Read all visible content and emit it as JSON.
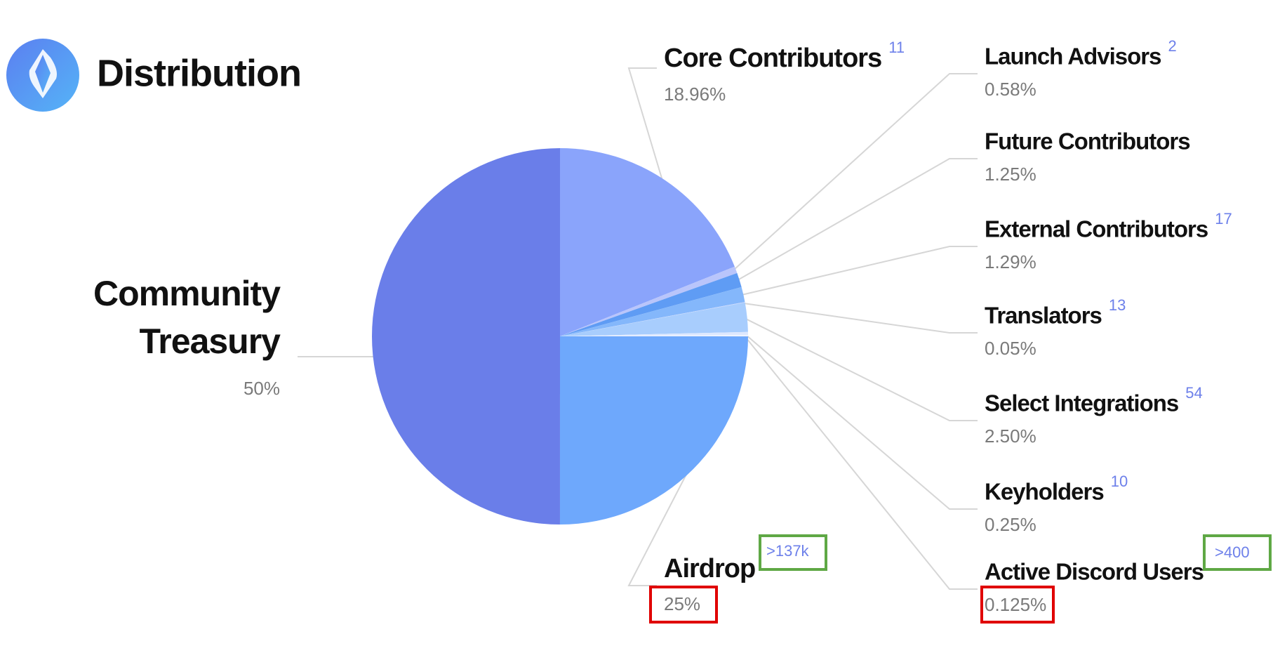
{
  "chart_data": {
    "type": "pie",
    "title": "Distribution",
    "categories": [
      "Core Contributors",
      "Launch Advisors",
      "Future Contributors",
      "External Contributors",
      "Translators",
      "Select Integrations",
      "Keyholders",
      "Active Discord Users",
      "Airdrop",
      "Community Treasury"
    ],
    "values": [
      18.96,
      0.58,
      1.25,
      1.29,
      0.05,
      2.5,
      0.25,
      0.125,
      25,
      50
    ],
    "value_labels": [
      "18.96%",
      "0.58%",
      "1.25%",
      "1.29%",
      "0.05%",
      "2.50%",
      "0.25%",
      "0.125%",
      "25%",
      "50%"
    ],
    "counts": [
      "11",
      "2",
      null,
      "17",
      "13",
      "54",
      "10",
      ">400",
      ">137k",
      null
    ],
    "colors": [
      "#8aa4fb",
      "#b9c5fb",
      "#5f9cf4",
      "#84b7fb",
      "#c8d6fd",
      "#a8cdfd",
      "#dde8fe",
      "#eef3ff",
      "#6ea8fc",
      "#6a7ee9"
    ]
  }
}
